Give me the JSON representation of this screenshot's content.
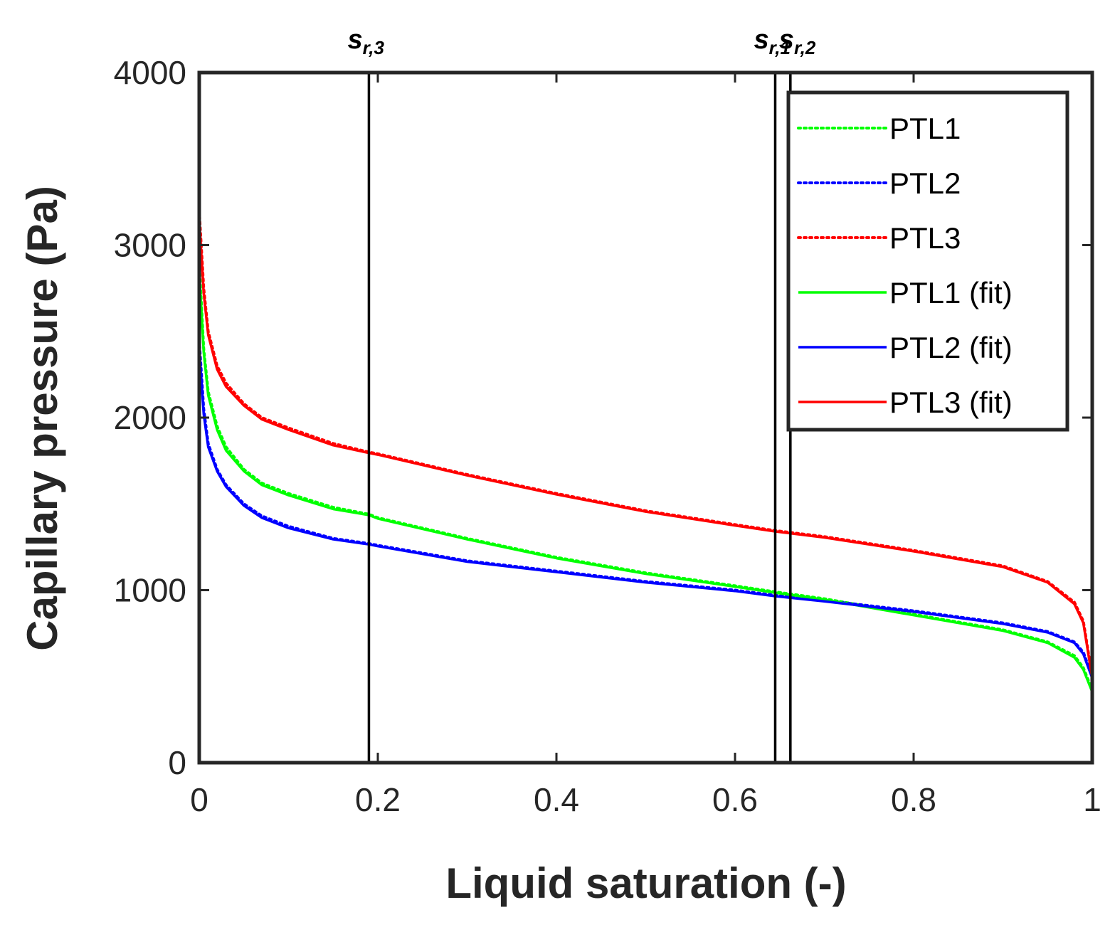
{
  "chart_data": {
    "type": "line",
    "title": "",
    "xlabel": "Liquid saturation (-)",
    "ylabel": "Capillary pressure (Pa)",
    "xlim": [
      0,
      1
    ],
    "ylim": [
      0,
      4000
    ],
    "xticks": [
      0,
      0.2,
      0.4,
      0.6,
      0.8,
      1
    ],
    "xtick_labels": [
      "0",
      "0.2",
      "0.4",
      "0.6",
      "0.8",
      "1"
    ],
    "yticks": [
      0,
      1000,
      2000,
      3000,
      4000
    ],
    "ytick_labels": [
      "0",
      "1000",
      "2000",
      "3000",
      "4000"
    ],
    "grid": false,
    "legend_position": "top-right",
    "vertical_lines": [
      {
        "x": 0.19,
        "label_main": "s",
        "label_sub": "r,3"
      },
      {
        "x": 0.645,
        "label_main": "s",
        "label_sub": "r,1"
      },
      {
        "x": 0.662,
        "label_main": "s",
        "label_sub": "r,2"
      }
    ],
    "x": [
      0,
      0.005,
      0.01,
      0.02,
      0.03,
      0.05,
      0.07,
      0.1,
      0.15,
      0.19,
      0.2,
      0.3,
      0.4,
      0.5,
      0.6,
      0.645,
      0.7,
      0.8,
      0.9,
      0.95,
      0.98,
      0.99,
      1.0
    ],
    "series": [
      {
        "name": "PTL1",
        "style": "dotted",
        "color": "#00ff00",
        "values": [
          2900,
          2400,
          2150,
          1950,
          1830,
          1700,
          1620,
          1560,
          1480,
          1440,
          1420,
          1300,
          1190,
          1100,
          1025,
          990,
          950,
          860,
          770,
          700,
          620,
          550,
          420
        ]
      },
      {
        "name": "PTL2",
        "style": "dotted",
        "color": "#0000ff",
        "values": [
          2450,
          2050,
          1850,
          1700,
          1610,
          1500,
          1430,
          1370,
          1300,
          1270,
          1260,
          1170,
          1110,
          1050,
          1000,
          970,
          940,
          880,
          810,
          760,
          700,
          640,
          500
        ]
      },
      {
        "name": "PTL3",
        "style": "dotted",
        "color": "#ff0000",
        "values": [
          3200,
          2750,
          2500,
          2300,
          2200,
          2080,
          2000,
          1940,
          1850,
          1800,
          1790,
          1670,
          1560,
          1460,
          1380,
          1345,
          1310,
          1230,
          1140,
          1050,
          930,
          820,
          500
        ]
      },
      {
        "name": "PTL1 (fit)",
        "style": "solid",
        "color": "#00ff00",
        "values": [
          2850,
          2380,
          2130,
          1930,
          1810,
          1690,
          1610,
          1550,
          1470,
          1435,
          1415,
          1295,
          1185,
          1095,
          1020,
          985,
          945,
          855,
          765,
          695,
          610,
          540,
          410
        ]
      },
      {
        "name": "PTL2 (fit)",
        "style": "solid",
        "color": "#0000ff",
        "values": [
          2400,
          2020,
          1830,
          1690,
          1600,
          1490,
          1420,
          1360,
          1295,
          1265,
          1255,
          1165,
          1105,
          1045,
          995,
          965,
          935,
          875,
          805,
          755,
          695,
          630,
          490
        ]
      },
      {
        "name": "PTL3 (fit)",
        "style": "solid",
        "color": "#ff0000",
        "values": [
          3150,
          2720,
          2480,
          2280,
          2180,
          2070,
          1990,
          1930,
          1840,
          1795,
          1785,
          1665,
          1555,
          1455,
          1375,
          1340,
          1305,
          1225,
          1135,
          1045,
          920,
          810,
          490
        ]
      }
    ]
  }
}
